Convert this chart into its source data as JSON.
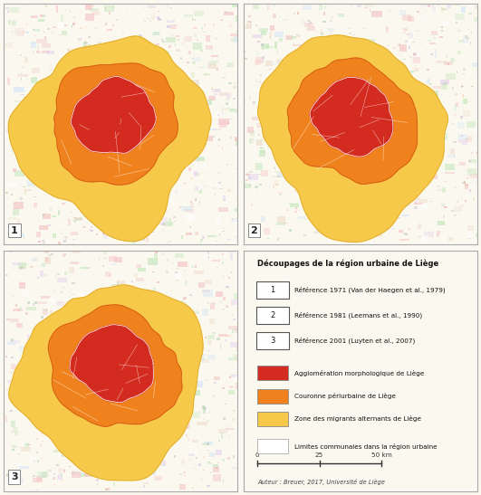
{
  "legend_title": "Découpages de la région urbaine de Liège",
  "legend_items_numbered": [
    {
      "num": "1",
      "text": "Référence 1971 (Van der Haegen et al., 1979)"
    },
    {
      "num": "2",
      "text": "Référence 1981 (Leemans et al., 1990)"
    },
    {
      "num": "3",
      "text": "Référence 2001 (Luyten et al., 2007)"
    }
  ],
  "legend_items_color": [
    {
      "color": "#d42b20",
      "text": "Agglomération morphologique de Liège"
    },
    {
      "color": "#f0821e",
      "text": "Couronne périurbaine de Liège"
    },
    {
      "color": "#f7c94a",
      "text": "Zone des migrants alternants de Liège"
    },
    {
      "color": "#ffffff",
      "text": "Limites communales dans la région urbaine"
    }
  ],
  "author": "Auteur : Breuer, 2017, Université de Liège",
  "bg_color": "#faf8ef",
  "agg_color": "#d42b20",
  "periurb_color": "#f0821e",
  "migrants_color": "#f7c94a",
  "map_border_color": "#aaaaaa"
}
